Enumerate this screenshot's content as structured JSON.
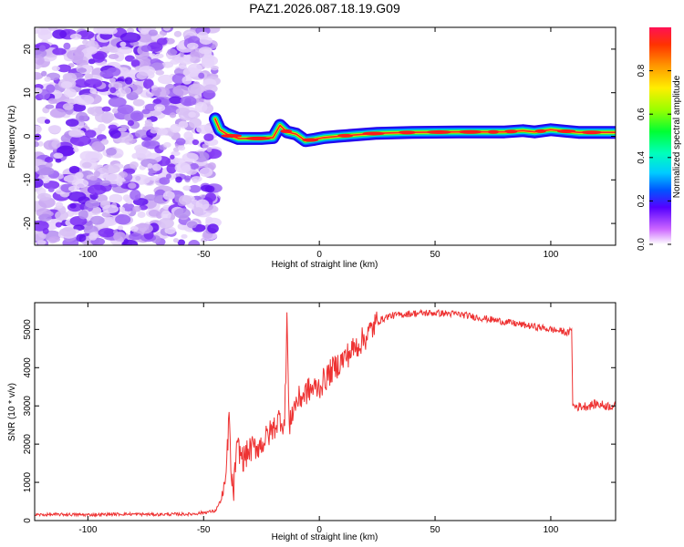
{
  "figure_title": "PAZ1.2026.087.18.19.G09",
  "colors": {
    "snr_line": "#ee3333",
    "axis": "#000000"
  },
  "chart_data": [
    {
      "type": "heatmap",
      "title": "PAZ1.2026.087.18.19.G09",
      "xlabel": "Height of straight line (km)",
      "ylabel": "Frequency (Hz)",
      "xlim": [
        -123,
        128
      ],
      "ylim": [
        -25,
        25
      ],
      "xticks": [
        -100,
        -50,
        0,
        50,
        100
      ],
      "xtick_labels": [
        "-100",
        "-50",
        "0",
        "50",
        "100"
      ],
      "yticks": [
        -20,
        -10,
        0,
        10,
        20
      ],
      "ytick_labels": [
        "-20",
        "-10",
        "0",
        "10",
        "20"
      ],
      "colorbar": {
        "label": "Normalized spectral amplitude",
        "range": [
          0,
          1
        ],
        "ticks": [
          0,
          0.2,
          0.4,
          0.6,
          0.8
        ],
        "tick_labels": [
          "0.0",
          "0.2",
          "0.4",
          "0.6",
          "0.8"
        ]
      },
      "noise_region_height_km": [
        -123,
        -45
      ],
      "ridge": [
        {
          "height": -45,
          "freq": 4.0
        },
        {
          "height": -43,
          "freq": 1.5
        },
        {
          "height": -40,
          "freq": 0.5
        },
        {
          "height": -35,
          "freq": -0.5
        },
        {
          "height": -25,
          "freq": -0.5
        },
        {
          "height": -20,
          "freq": -0.3
        },
        {
          "height": -17,
          "freq": 2.5
        },
        {
          "height": -14,
          "freq": 1.0
        },
        {
          "height": -10,
          "freq": 0.5
        },
        {
          "height": -6,
          "freq": -1.0
        },
        {
          "height": -2,
          "freq": -0.7
        },
        {
          "height": 2,
          "freq": -0.3
        },
        {
          "height": 8,
          "freq": 0.0
        },
        {
          "height": 15,
          "freq": 0.3
        },
        {
          "height": 25,
          "freq": 0.7
        },
        {
          "height": 40,
          "freq": 0.9
        },
        {
          "height": 60,
          "freq": 1.0
        },
        {
          "height": 80,
          "freq": 1.0
        },
        {
          "height": 88,
          "freq": 1.3
        },
        {
          "height": 93,
          "freq": 1.0
        },
        {
          "height": 100,
          "freq": 1.5
        },
        {
          "height": 106,
          "freq": 1.2
        },
        {
          "height": 112,
          "freq": 0.9
        },
        {
          "height": 128,
          "freq": 0.9
        }
      ]
    },
    {
      "type": "line",
      "xlabel": "Height of straight line (km)",
      "ylabel": "SNR (10 * v/v)",
      "xlim": [
        -123,
        128
      ],
      "ylim": [
        0,
        5700
      ],
      "xticks": [
        -100,
        -50,
        0,
        50,
        100
      ],
      "xtick_labels": [
        "-100",
        "-50",
        "0",
        "50",
        "100"
      ],
      "yticks": [
        0,
        1000,
        2000,
        3000,
        4000,
        5000
      ],
      "ytick_labels": [
        "0",
        "1000",
        "2000",
        "3000",
        "4000",
        "5000"
      ],
      "series": [
        {
          "name": "SNR",
          "x": [
            -123,
            -110,
            -100,
            -85,
            -70,
            -55,
            -45,
            -41,
            -40,
            -39,
            -38,
            -37,
            -36,
            -35,
            -33,
            -30,
            -25,
            -20,
            -17,
            -15,
            -14,
            -13,
            -12,
            -10,
            -5,
            0,
            5,
            10,
            15,
            20,
            25,
            30,
            40,
            50,
            60,
            70,
            80,
            90,
            100,
            105,
            108,
            109,
            109.5,
            112,
            116,
            120,
            124,
            128
          ],
          "y": [
            150,
            160,
            150,
            170,
            160,
            170,
            250,
            700,
            1500,
            2800,
            1000,
            800,
            1700,
            1900,
            1600,
            1850,
            2000,
            2400,
            2700,
            2500,
            5400,
            2300,
            2800,
            3100,
            3400,
            3500,
            3900,
            4200,
            4500,
            4800,
            5200,
            5350,
            5420,
            5430,
            5400,
            5300,
            5200,
            5100,
            5000,
            4950,
            4900,
            5100,
            3000,
            2980,
            3000,
            3050,
            3000,
            3000
          ]
        }
      ]
    }
  ]
}
